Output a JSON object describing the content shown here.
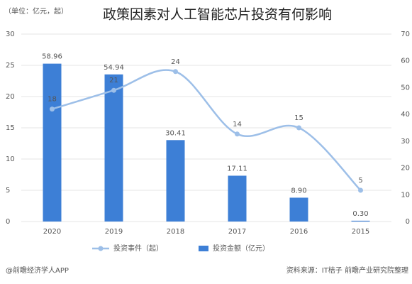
{
  "chart_data": {
    "type": "bar-line",
    "title": "政策因素对人工智能芯片投资有何影响",
    "subtitle": "（单位：亿元，起）",
    "categories": [
      "2020",
      "2019",
      "2018",
      "2017",
      "2016",
      "2015"
    ],
    "series": [
      {
        "name": "投资金额（亿元）",
        "type": "bar",
        "axis": "y2",
        "color": "#3d7fd6",
        "values": [
          58.96,
          54.94,
          30.41,
          17.11,
          8.9,
          0.3
        ],
        "value_labels": [
          "58.96",
          "54.94",
          "30.41",
          "17.11",
          "8.90",
          "0.30"
        ]
      },
      {
        "name": "投资事件（起）",
        "type": "line",
        "axis": "y",
        "color": "#9dbfe8",
        "values": [
          18,
          21,
          24,
          14,
          15,
          5
        ]
      }
    ],
    "ylim": [
      0,
      30
    ],
    "yticks": [
      0,
      5,
      10,
      15,
      20,
      25,
      30
    ],
    "y2lim": [
      0,
      70
    ],
    "y2ticks": [
      0,
      10,
      20,
      30,
      40,
      50,
      60,
      70
    ],
    "grid": true,
    "source": "资料来源：IT桔子 前瞻产业研究院整理",
    "credit": "@前瞻经济学人APP"
  }
}
